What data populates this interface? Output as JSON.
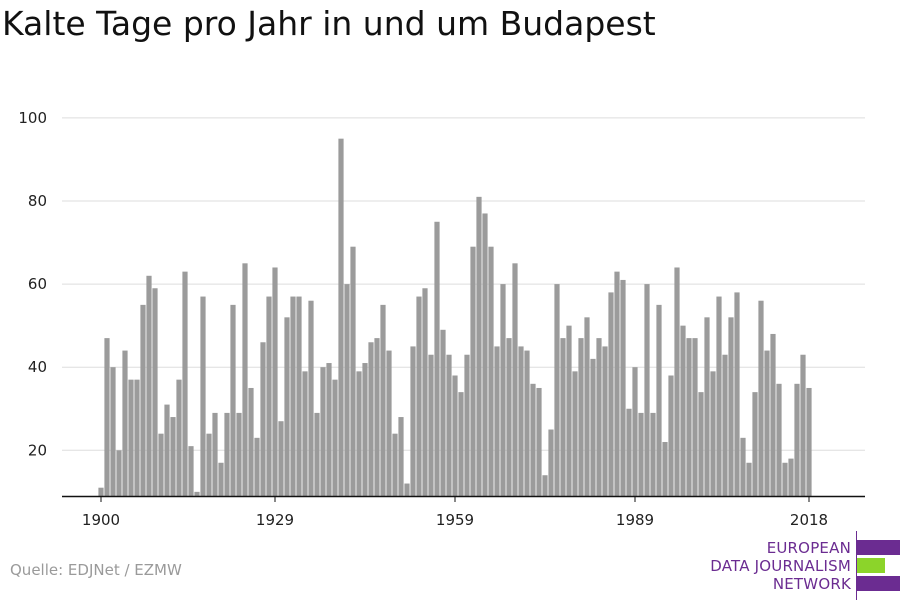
{
  "title": "Kalte Tage pro Jahr in und um Budapest",
  "source": "Quelle: EDJNet / EZMW",
  "logo": {
    "line1": "EUROPEAN",
    "line2": "DATA JOURNALISM",
    "line3": "NETWORK"
  },
  "colors": {
    "bar": "#9b9b9b",
    "grid": "#dddddd",
    "axis": "#111111",
    "brand": "#6b2c91",
    "accent": "#8cd42a"
  },
  "chart_data": {
    "type": "bar",
    "xlabel": "",
    "ylabel": "",
    "x_ticks": [
      1900,
      1929,
      1959,
      1989,
      2018
    ],
    "y_ticks": [
      20,
      40,
      60,
      80,
      100
    ],
    "ylim": [
      9,
      101
    ],
    "grid": true,
    "x": [
      1900,
      1901,
      1902,
      1903,
      1904,
      1905,
      1906,
      1907,
      1908,
      1909,
      1910,
      1911,
      1912,
      1913,
      1914,
      1915,
      1916,
      1917,
      1918,
      1919,
      1920,
      1921,
      1922,
      1923,
      1924,
      1925,
      1926,
      1927,
      1928,
      1929,
      1930,
      1931,
      1932,
      1933,
      1934,
      1935,
      1936,
      1937,
      1938,
      1939,
      1940,
      1941,
      1942,
      1943,
      1944,
      1945,
      1946,
      1947,
      1948,
      1949,
      1950,
      1951,
      1952,
      1953,
      1954,
      1955,
      1956,
      1957,
      1958,
      1959,
      1960,
      1961,
      1962,
      1963,
      1964,
      1965,
      1966,
      1967,
      1968,
      1969,
      1970,
      1971,
      1972,
      1973,
      1974,
      1975,
      1976,
      1977,
      1978,
      1979,
      1980,
      1981,
      1982,
      1983,
      1984,
      1985,
      1986,
      1987,
      1988,
      1989,
      1990,
      1991,
      1992,
      1993,
      1994,
      1995,
      1996,
      1997,
      1998,
      1999,
      2000,
      2001,
      2002,
      2003,
      2004,
      2005,
      2006,
      2007,
      2008,
      2009,
      2010,
      2011,
      2012,
      2013,
      2014,
      2015,
      2016,
      2017,
      2018
    ],
    "values": [
      11,
      47,
      40,
      20,
      44,
      37,
      37,
      55,
      62,
      59,
      24,
      31,
      28,
      37,
      63,
      21,
      10,
      57,
      24,
      29,
      17,
      29,
      55,
      29,
      65,
      35,
      23,
      46,
      57,
      64,
      27,
      52,
      57,
      57,
      39,
      56,
      29,
      40,
      41,
      37,
      95,
      60,
      69,
      39,
      41,
      46,
      47,
      55,
      44,
      24,
      28,
      12,
      45,
      57,
      59,
      43,
      75,
      49,
      43,
      38,
      34,
      43,
      69,
      81,
      77,
      69,
      45,
      60,
      47,
      65,
      45,
      44,
      36,
      35,
      14,
      25,
      60,
      47,
      50,
      39,
      47,
      52,
      42,
      47,
      45,
      58,
      63,
      61,
      30,
      40,
      29,
      60,
      29,
      55,
      22,
      38,
      64,
      50,
      47,
      47,
      34,
      52,
      39,
      57,
      43,
      52,
      58,
      23,
      17,
      34,
      56,
      44,
      48,
      36,
      17,
      18,
      36,
      43,
      35
    ]
  }
}
